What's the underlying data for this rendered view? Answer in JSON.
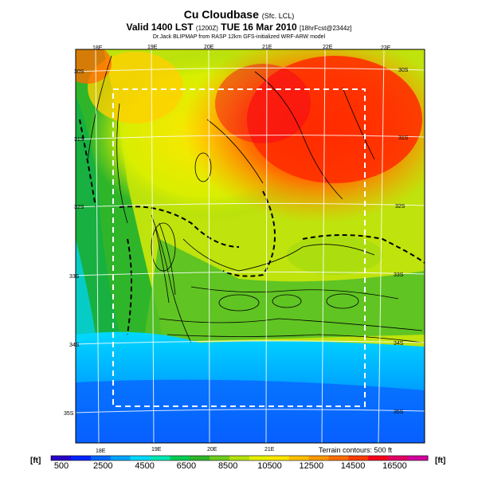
{
  "header": {
    "title": "Cu Cloudbase",
    "title_suffix": "(Sfc. LCL)",
    "valid_line": "Valid 1400 LST",
    "valid_code": "(1200Z)",
    "valid_date": "TUE 16 Mar 2010",
    "valid_fcst": "[18hrFcst@2344z]",
    "credit": "Dr.Jack BLIPMAP from RASP 12km GFS-initialized WRF-ARW model"
  },
  "map": {
    "lon_labels_top": [
      "18E",
      "19E",
      "20E",
      "21E",
      "22E",
      "23E"
    ],
    "lon_labels_bottom": [
      "18E",
      "19E",
      "20E",
      "21E"
    ],
    "lat_labels_left": [
      "30S",
      "31S",
      "32S",
      "33S",
      "34S",
      "35S"
    ],
    "lat_labels_right": [
      "30S",
      "31S",
      "32S",
      "33S",
      "34S",
      "35S"
    ],
    "terrain_note": "Terrain contours: 500 ft"
  },
  "legend": {
    "unit_left": "[ft]",
    "unit_right": "[ft]",
    "ticks": [
      "500",
      "2500",
      "4500",
      "6500",
      "8500",
      "10500",
      "12500",
      "14500",
      "16500"
    ],
    "colors": [
      "#2b00c8",
      "#0025ff",
      "#0066ff",
      "#00a3ff",
      "#00d8ff",
      "#00e6b4",
      "#00cc55",
      "#2eb52a",
      "#6fcb1e",
      "#b4e012",
      "#e6f000",
      "#ffe600",
      "#ffbf00",
      "#ff9900",
      "#ff6e00",
      "#ff3c00",
      "#f5001e",
      "#e00064",
      "#d2009b"
    ]
  }
}
